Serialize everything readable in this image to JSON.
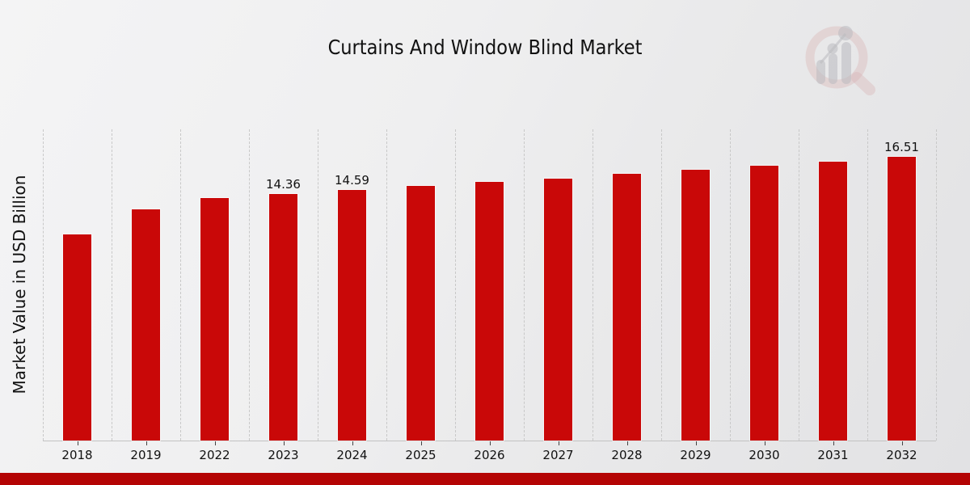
{
  "title": "Curtains And Window Blind Market",
  "ylabel": "Market Value in USD Billion",
  "colors": {
    "bar_red": "#c90808",
    "banner_red": "#b40404",
    "grid": "#c8c8c8",
    "text": "#111111"
  },
  "logo": {
    "name": "market-research-future-logo"
  },
  "chart_data": {
    "type": "bar",
    "title": "Curtains And Window Blind Market",
    "xlabel": "",
    "ylabel": "Market Value in USD Billion",
    "categories": [
      "2018",
      "2019",
      "2022",
      "2023",
      "2024",
      "2025",
      "2026",
      "2027",
      "2028",
      "2029",
      "2030",
      "2031",
      "2032"
    ],
    "values": [
      12.01,
      13.47,
      14.14,
      14.36,
      14.59,
      14.82,
      15.05,
      15.28,
      15.52,
      15.76,
      16.01,
      16.26,
      16.51
    ],
    "bar_labels": [
      null,
      null,
      null,
      "14.36",
      "14.59",
      null,
      null,
      null,
      null,
      null,
      null,
      null,
      "16.51"
    ],
    "ylim": [
      0,
      18.13
    ],
    "grid": "vertical-dashed",
    "legend": "none",
    "bar_color": "#c90808"
  }
}
